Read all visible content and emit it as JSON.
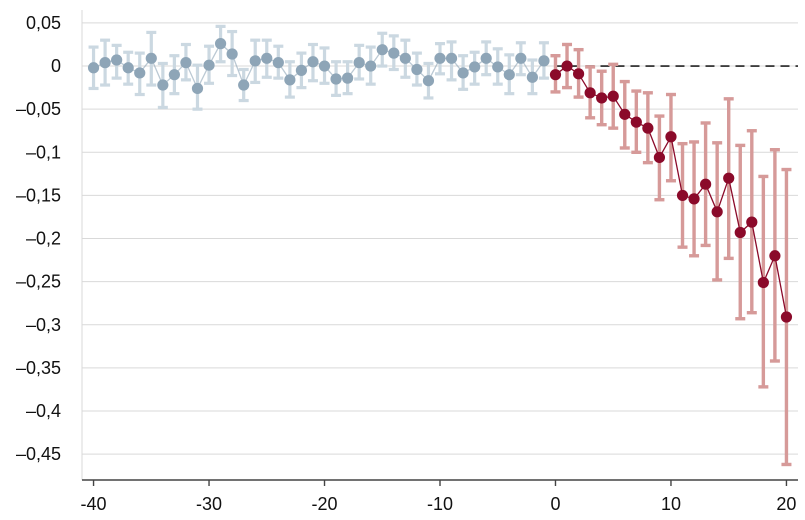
{
  "chart_data": {
    "type": "scatter",
    "title": "",
    "xlabel": "",
    "ylabel": "",
    "xlim": [
      -41,
      21
    ],
    "ylim": [
      -0.48,
      0.065
    ],
    "xticks": [
      {
        "value": -40,
        "label": "-40"
      },
      {
        "value": -30,
        "label": "-30"
      },
      {
        "value": -20,
        "label": "-20"
      },
      {
        "value": -10,
        "label": "-10"
      },
      {
        "value": 0,
        "label": "0"
      },
      {
        "value": 10,
        "label": "10"
      },
      {
        "value": 20,
        "label": "20"
      }
    ],
    "yticks": [
      {
        "value": 0.05,
        "label": "0,05"
      },
      {
        "value": 0,
        "label": "0"
      },
      {
        "value": -0.05,
        "label": "–0,05"
      },
      {
        "value": -0.1,
        "label": "–0,1"
      },
      {
        "value": -0.15,
        "label": "–0,15"
      },
      {
        "value": -0.2,
        "label": "–0,2"
      },
      {
        "value": -0.25,
        "label": "–0,25"
      },
      {
        "value": -0.3,
        "label": "–0,3"
      },
      {
        "value": -0.35,
        "label": "–0,35"
      },
      {
        "value": -0.4,
        "label": "–0,4"
      },
      {
        "value": -0.45,
        "label": "–0,45"
      }
    ],
    "grid": "horizontal",
    "reference_line": {
      "y": 0,
      "style": "dashed"
    },
    "colors": {
      "pre_point": "#8ea5b7",
      "pre_whisker": "#cbd8e1",
      "post_point": "#8b0a2a",
      "post_whisker": "#d69a99",
      "grid": "#d9d9d9",
      "axis": "#444444",
      "reference": "#222222"
    },
    "series": [
      {
        "group": "pre",
        "points": [
          {
            "x": -40,
            "y": -0.002,
            "lo": -0.026,
            "hi": 0.022
          },
          {
            "x": -39,
            "y": 0.004,
            "lo": -0.022,
            "hi": 0.03
          },
          {
            "x": -38,
            "y": 0.007,
            "lo": -0.014,
            "hi": 0.024
          },
          {
            "x": -37,
            "y": -0.002,
            "lo": -0.021,
            "hi": 0.016
          },
          {
            "x": -36,
            "y": -0.008,
            "lo": -0.033,
            "hi": 0.015
          },
          {
            "x": -35,
            "y": 0.009,
            "lo": -0.022,
            "hi": 0.039
          },
          {
            "x": -34,
            "y": -0.022,
            "lo": -0.048,
            "hi": 0.003
          },
          {
            "x": -33,
            "y": -0.01,
            "lo": -0.032,
            "hi": 0.012
          },
          {
            "x": -32,
            "y": 0.004,
            "lo": -0.016,
            "hi": 0.025
          },
          {
            "x": -31,
            "y": -0.026,
            "lo": -0.05,
            "hi": 0.001
          },
          {
            "x": -30,
            "y": 0.001,
            "lo": -0.02,
            "hi": 0.023
          },
          {
            "x": -29,
            "y": 0.026,
            "lo": 0.005,
            "hi": 0.046
          },
          {
            "x": -28,
            "y": 0.014,
            "lo": -0.011,
            "hi": 0.04
          },
          {
            "x": -27,
            "y": -0.022,
            "lo": -0.04,
            "hi": -0.004
          },
          {
            "x": -26,
            "y": 0.006,
            "lo": -0.019,
            "hi": 0.03
          },
          {
            "x": -25,
            "y": 0.009,
            "lo": -0.013,
            "hi": 0.03
          },
          {
            "x": -24,
            "y": 0.004,
            "lo": -0.014,
            "hi": 0.023
          },
          {
            "x": -23,
            "y": -0.016,
            "lo": -0.036,
            "hi": 0.005
          },
          {
            "x": -22,
            "y": -0.005,
            "lo": -0.025,
            "hi": 0.015
          },
          {
            "x": -21,
            "y": 0.005,
            "lo": -0.017,
            "hi": 0.025
          },
          {
            "x": -20,
            "y": 0.0,
            "lo": -0.02,
            "hi": 0.021
          },
          {
            "x": -19,
            "y": -0.015,
            "lo": -0.034,
            "hi": 0.005
          },
          {
            "x": -18,
            "y": -0.014,
            "lo": -0.032,
            "hi": 0.005
          },
          {
            "x": -17,
            "y": 0.004,
            "lo": -0.015,
            "hi": 0.024
          },
          {
            "x": -16,
            "y": 0.0,
            "lo": -0.021,
            "hi": 0.022
          },
          {
            "x": -15,
            "y": 0.019,
            "lo": 0.0,
            "hi": 0.038
          },
          {
            "x": -14,
            "y": 0.015,
            "lo": -0.004,
            "hi": 0.035
          },
          {
            "x": -13,
            "y": 0.009,
            "lo": -0.013,
            "hi": 0.03
          },
          {
            "x": -12,
            "y": -0.004,
            "lo": -0.022,
            "hi": 0.015
          },
          {
            "x": -11,
            "y": -0.017,
            "lo": -0.037,
            "hi": 0.003
          },
          {
            "x": -10,
            "y": 0.009,
            "lo": -0.009,
            "hi": 0.026
          },
          {
            "x": -9,
            "y": 0.009,
            "lo": -0.016,
            "hi": 0.028
          },
          {
            "x": -8,
            "y": -0.008,
            "lo": -0.027,
            "hi": 0.012
          },
          {
            "x": -7,
            "y": -0.001,
            "lo": -0.021,
            "hi": 0.016
          },
          {
            "x": -6,
            "y": 0.009,
            "lo": -0.01,
            "hi": 0.028
          },
          {
            "x": -5,
            "y": -0.001,
            "lo": -0.021,
            "hi": 0.02
          },
          {
            "x": -4,
            "y": -0.01,
            "lo": -0.032,
            "hi": 0.013
          },
          {
            "x": -3,
            "y": 0.009,
            "lo": -0.01,
            "hi": 0.027
          },
          {
            "x": -2,
            "y": -0.013,
            "lo": -0.032,
            "hi": 0.007
          },
          {
            "x": -1,
            "y": 0.006,
            "lo": -0.014,
            "hi": 0.027
          }
        ]
      },
      {
        "group": "post",
        "points": [
          {
            "x": 0,
            "y": -0.01,
            "lo": -0.03,
            "hi": 0.012
          },
          {
            "x": 1,
            "y": 0.0,
            "lo": -0.025,
            "hi": 0.025
          },
          {
            "x": 2,
            "y": -0.009,
            "lo": -0.036,
            "hi": 0.019
          },
          {
            "x": 3,
            "y": -0.031,
            "lo": -0.06,
            "hi": -0.001
          },
          {
            "x": 4,
            "y": -0.037,
            "lo": -0.068,
            "hi": -0.006
          },
          {
            "x": 5,
            "y": -0.035,
            "lo": -0.072,
            "hi": 0.002
          },
          {
            "x": 6,
            "y": -0.056,
            "lo": -0.095,
            "hi": -0.018
          },
          {
            "x": 7,
            "y": -0.065,
            "lo": -0.1,
            "hi": -0.029
          },
          {
            "x": 8,
            "y": -0.072,
            "lo": -0.112,
            "hi": -0.031
          },
          {
            "x": 9,
            "y": -0.106,
            "lo": -0.155,
            "hi": -0.058
          },
          {
            "x": 10,
            "y": -0.082,
            "lo": -0.133,
            "hi": -0.033
          },
          {
            "x": 11,
            "y": -0.15,
            "lo": -0.21,
            "hi": -0.09
          },
          {
            "x": 12,
            "y": -0.154,
            "lo": -0.22,
            "hi": -0.088
          },
          {
            "x": 13,
            "y": -0.137,
            "lo": -0.208,
            "hi": -0.066
          },
          {
            "x": 14,
            "y": -0.169,
            "lo": -0.248,
            "hi": -0.089
          },
          {
            "x": 15,
            "y": -0.13,
            "lo": -0.223,
            "hi": -0.038
          },
          {
            "x": 16,
            "y": -0.193,
            "lo": -0.293,
            "hi": -0.092
          },
          {
            "x": 17,
            "y": -0.181,
            "lo": -0.286,
            "hi": -0.075
          },
          {
            "x": 18,
            "y": -0.251,
            "lo": -0.372,
            "hi": -0.128
          },
          {
            "x": 19,
            "y": -0.22,
            "lo": -0.342,
            "hi": -0.097
          },
          {
            "x": 20,
            "y": -0.291,
            "lo": -0.462,
            "hi": -0.12
          }
        ]
      }
    ]
  }
}
